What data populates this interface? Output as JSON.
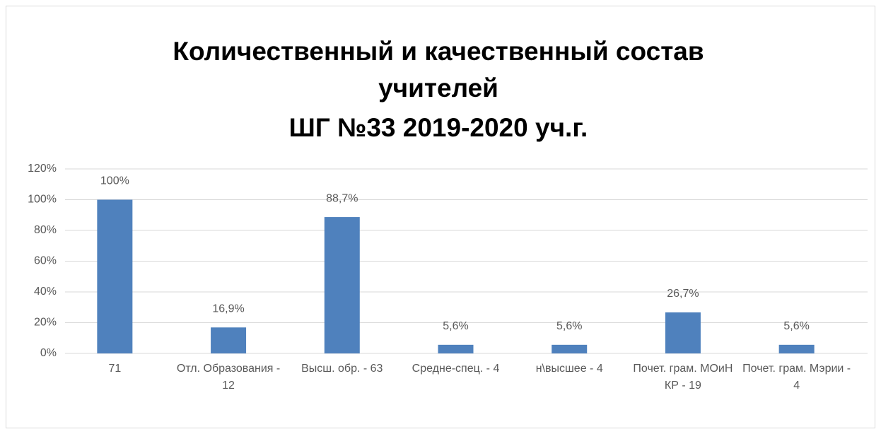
{
  "chart_data": {
    "type": "bar",
    "title": [
      "Количественный и качественный состав",
      "учителей",
      "ШГ №33 2019-2020 уч.г."
    ],
    "categories": [
      "71",
      "Отл. Образования - 12",
      "Высш. обр. - 63",
      "Средне-спец. - 4",
      "н\\высшее - 4",
      "Почет. грам. МОиН КР - 19",
      "Почет. грам. Мэрии - 4"
    ],
    "values": [
      100,
      16.9,
      88.7,
      5.6,
      5.6,
      26.7,
      5.6
    ],
    "value_labels": [
      "100%",
      "16,9%",
      "88,7%",
      "5,6%",
      "5,6%",
      "26,7%",
      "5,6%"
    ],
    "color": "#4f81bd",
    "ylim": [
      0,
      120
    ],
    "yticks": [
      {
        "value": 0,
        "label": "0%"
      },
      {
        "value": 20,
        "label": "20%"
      },
      {
        "value": 40,
        "label": "40%"
      },
      {
        "value": 60,
        "label": "60%"
      },
      {
        "value": 80,
        "label": "80%"
      },
      {
        "value": 100,
        "label": "100%"
      },
      {
        "value": 120,
        "label": "120%"
      }
    ],
    "grid": true
  }
}
